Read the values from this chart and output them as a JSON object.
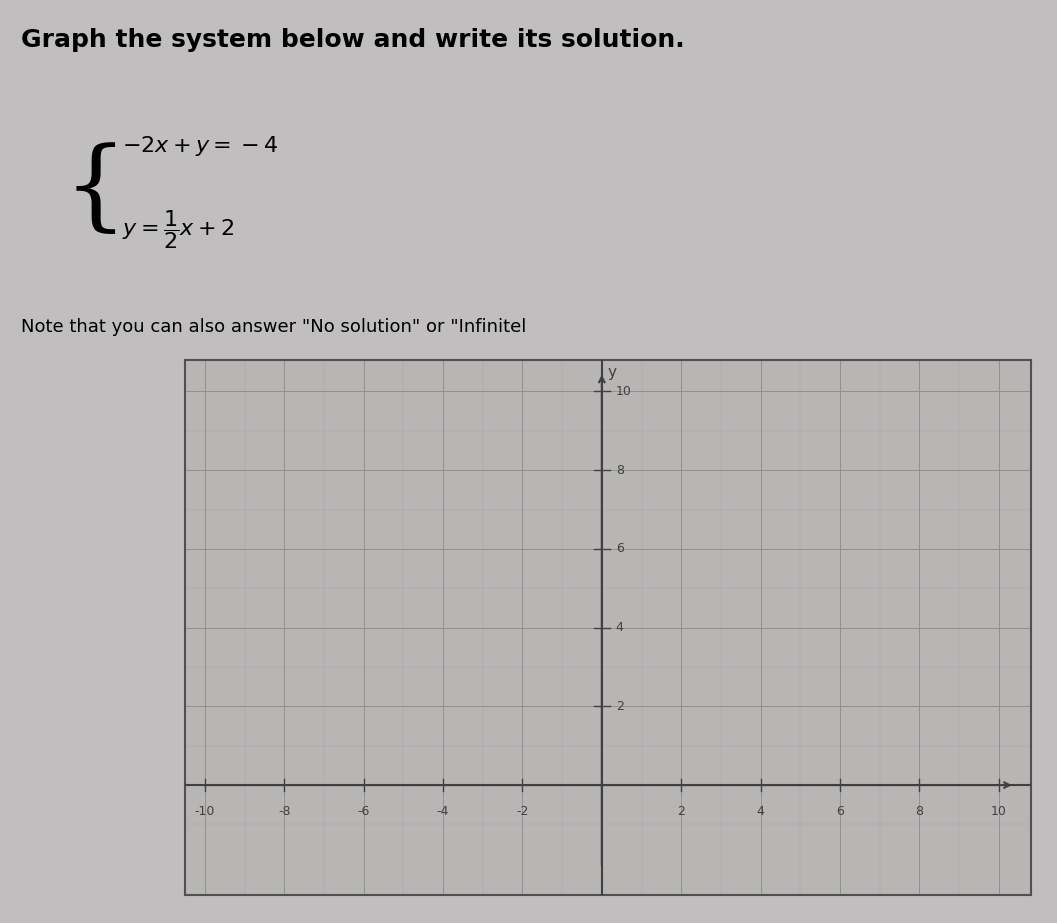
{
  "title": "Graph the system below and write its solution.",
  "equation1_tex": "$-2x+y=-4$",
  "equation2_tex": "$y=\\dfrac{1}{2}x+2$",
  "note": "Note that you can also answer \"No solution\" or \"Infinitel",
  "bg_color": "#c0bebe",
  "graph_bg_color": "#b8b5b5",
  "grid_color": "#909090",
  "axis_color": "#404040",
  "border_color": "#505050",
  "tick_label_color": "#404040",
  "xlim": [
    -10,
    10
  ],
  "ylim": [
    -2,
    10
  ],
  "xticks": [
    -10,
    -8,
    -6,
    -4,
    -2,
    0,
    2,
    4,
    6,
    8,
    10
  ],
  "yticks": [
    0,
    2,
    4,
    6,
    8,
    10
  ],
  "xlabel_vals": [
    -10,
    -8,
    -6,
    -4,
    -2,
    2,
    4,
    6,
    8,
    10
  ],
  "ylabel_vals": [
    2,
    4,
    6,
    8,
    10
  ],
  "tick_fontsize": 9,
  "title_fontsize": 18,
  "eq_fontsize": 16,
  "note_fontsize": 13
}
